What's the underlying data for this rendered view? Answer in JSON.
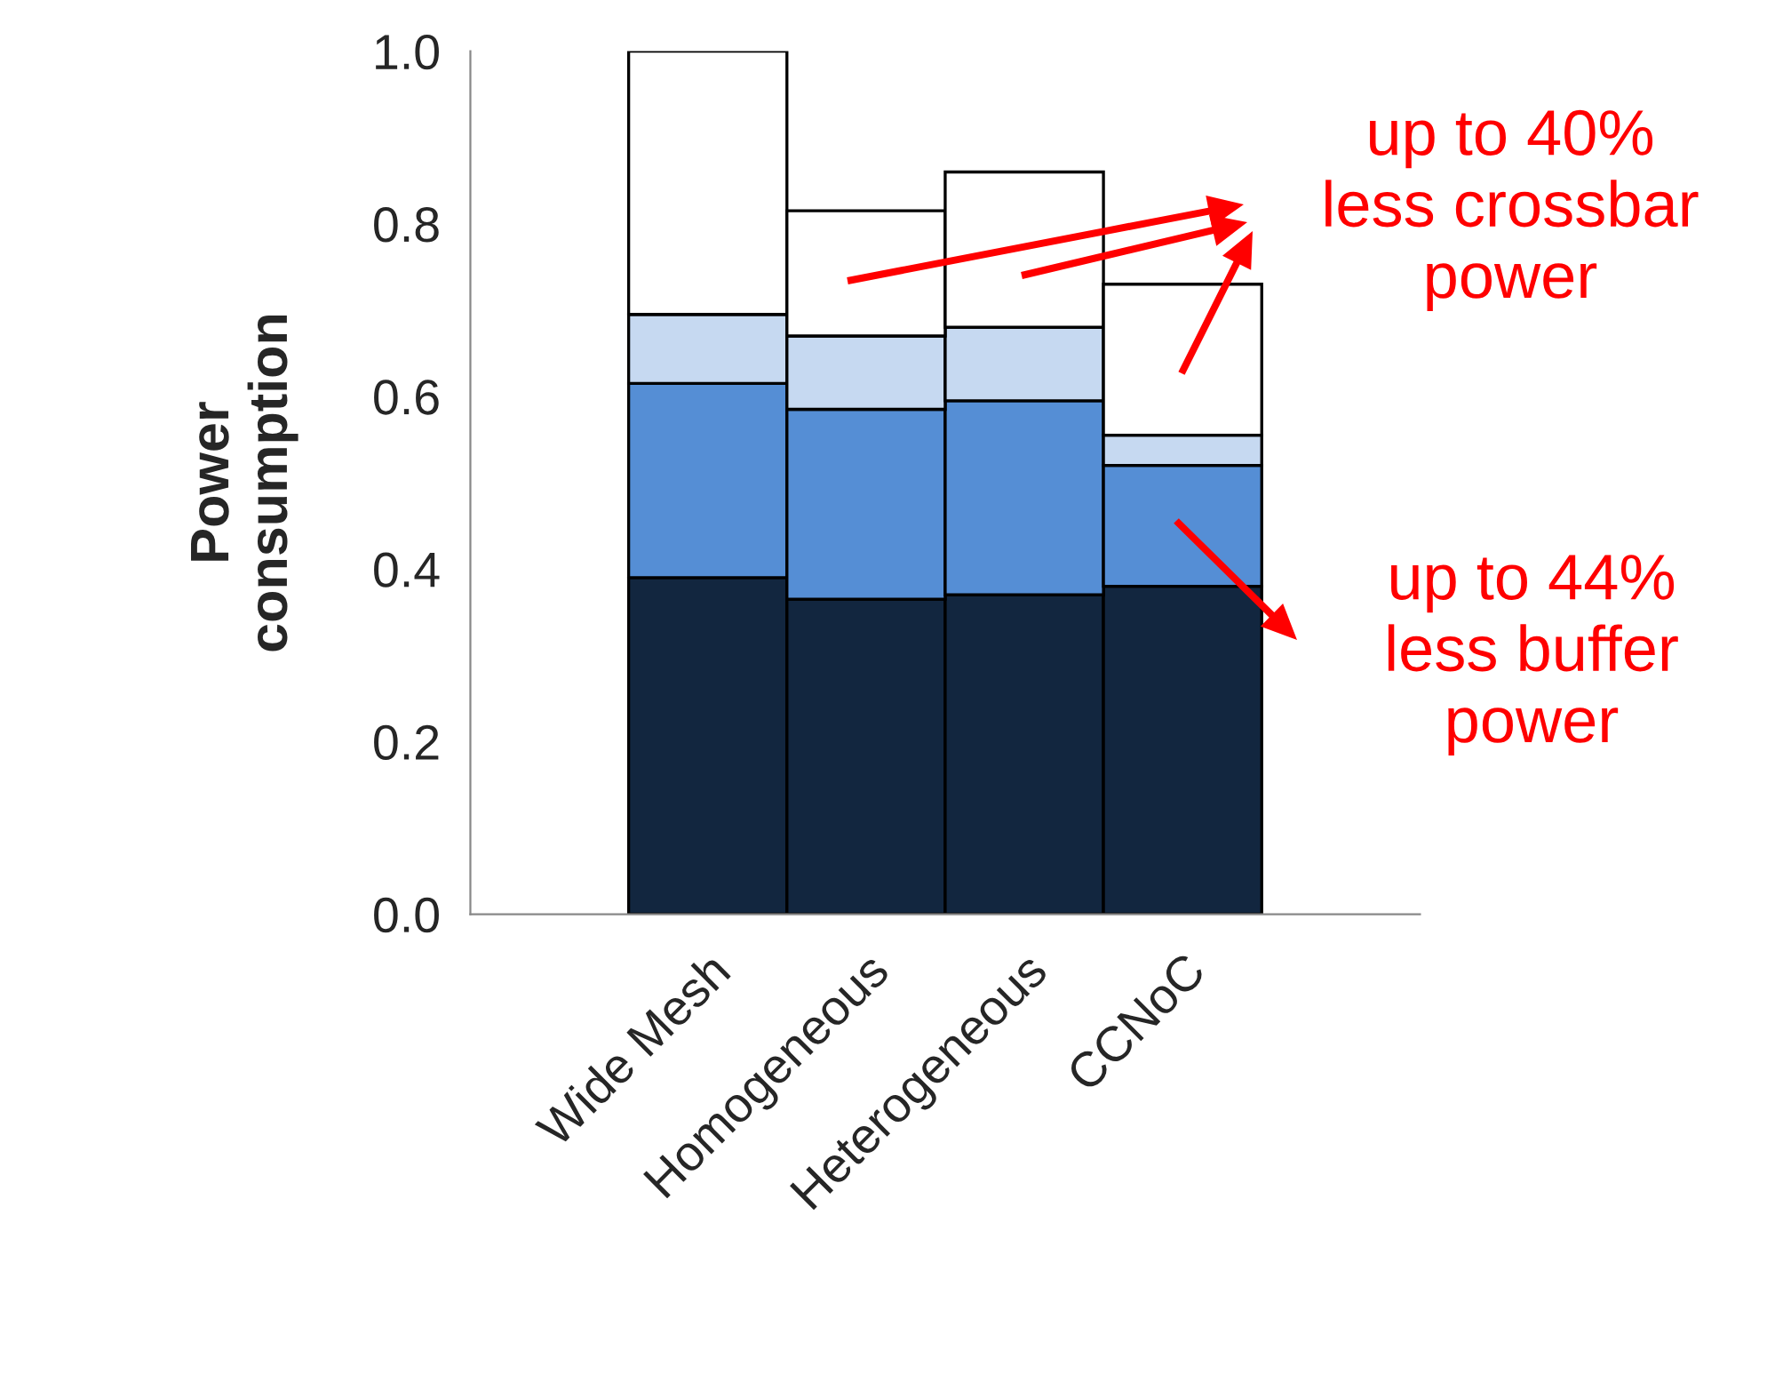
{
  "chart_data": {
    "type": "bar",
    "stacked": true,
    "ylabel": "Power\nconsumption",
    "categories": [
      "Wide Mesh",
      "Homogeneous",
      "Heterogeneous",
      "CCNoC"
    ],
    "series": [
      {
        "color": "#12263f",
        "values": [
          0.39,
          0.365,
          0.37,
          0.38
        ]
      },
      {
        "color": "#558ed5",
        "values": [
          0.225,
          0.22,
          0.225,
          0.14
        ]
      },
      {
        "color": "#c6d9f1",
        "values": [
          0.08,
          0.085,
          0.085,
          0.035
        ]
      },
      {
        "color": "#ffffff",
        "values": [
          0.305,
          0.145,
          0.18,
          0.175
        ]
      }
    ],
    "ylim": [
      0,
      1.0
    ],
    "yticks": [
      {
        "value": 0,
        "label": "0.0"
      },
      {
        "value": 0.2,
        "label": "0.2"
      },
      {
        "value": 0.4,
        "label": "0.4"
      },
      {
        "value": 0.6,
        "label": "0.6"
      },
      {
        "value": 0.8,
        "label": "0.8"
      },
      {
        "value": 1.0,
        "label": "1.0"
      }
    ],
    "grid": false,
    "legend": false,
    "annotations": [
      "up to 40%\nless crossbar\npower",
      "up to 44%\nless buffer\npower"
    ]
  }
}
